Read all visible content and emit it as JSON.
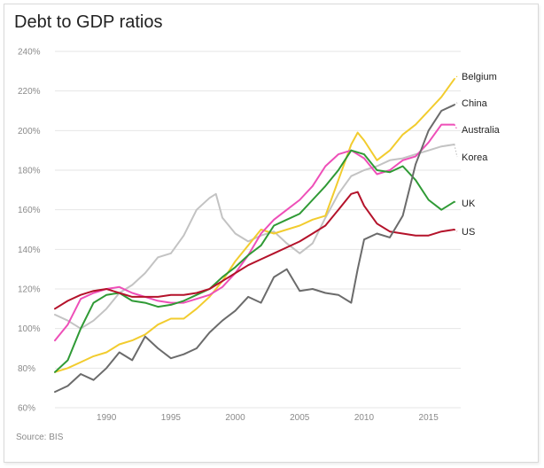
{
  "chart_data": {
    "type": "line",
    "title": "Debt to GDP ratios",
    "source": "Source: BIS",
    "xlim": [
      1986,
      2017.5
    ],
    "ylim": [
      60,
      240
    ],
    "y_ticks": [
      "60%",
      "80%",
      "100%",
      "120%",
      "140%",
      "160%",
      "180%",
      "200%",
      "220%",
      "240%"
    ],
    "y_tick_values": [
      60,
      80,
      100,
      120,
      140,
      160,
      180,
      200,
      220,
      240
    ],
    "x_ticks": [
      "1990",
      "1995",
      "2000",
      "2005",
      "2010",
      "2015"
    ],
    "x_tick_values": [
      1990,
      1995,
      2000,
      2005,
      2010,
      2015
    ],
    "grid": "horizontal",
    "series": [
      {
        "name": "Belgium",
        "color": "#f2cc2e",
        "points": [
          [
            1986,
            78
          ],
          [
            1987,
            80
          ],
          [
            1988,
            83
          ],
          [
            1989,
            86
          ],
          [
            1990,
            88
          ],
          [
            1991,
            92
          ],
          [
            1992,
            94
          ],
          [
            1993,
            97
          ],
          [
            1994,
            102
          ],
          [
            1995,
            105
          ],
          [
            1996,
            105
          ],
          [
            1997,
            110
          ],
          [
            1998,
            116
          ],
          [
            1999,
            124
          ],
          [
            2000,
            134
          ],
          [
            2001,
            142
          ],
          [
            2002,
            150
          ],
          [
            2003,
            148
          ],
          [
            2004,
            150
          ],
          [
            2005,
            152
          ],
          [
            2006,
            155
          ],
          [
            2007,
            157
          ],
          [
            2008,
            175
          ],
          [
            2009,
            193
          ],
          [
            2009.5,
            199
          ],
          [
            2010,
            195
          ],
          [
            2011,
            185
          ],
          [
            2012,
            190
          ],
          [
            2013,
            198
          ],
          [
            2014,
            203
          ],
          [
            2015,
            210
          ],
          [
            2016,
            217
          ],
          [
            2017,
            226
          ]
        ]
      },
      {
        "name": "China",
        "color": "#6b6b6b",
        "points": [
          [
            1986,
            68
          ],
          [
            1987,
            71
          ],
          [
            1988,
            77
          ],
          [
            1989,
            74
          ],
          [
            1990,
            80
          ],
          [
            1991,
            88
          ],
          [
            1992,
            84
          ],
          [
            1993,
            96
          ],
          [
            1994,
            90
          ],
          [
            1995,
            85
          ],
          [
            1996,
            87
          ],
          [
            1997,
            90
          ],
          [
            1998,
            98
          ],
          [
            1999,
            104
          ],
          [
            2000,
            109
          ],
          [
            2001,
            116
          ],
          [
            2002,
            113
          ],
          [
            2003,
            126
          ],
          [
            2004,
            130
          ],
          [
            2005,
            119
          ],
          [
            2006,
            120
          ],
          [
            2007,
            118
          ],
          [
            2008,
            117
          ],
          [
            2009,
            113
          ],
          [
            2009.5,
            130
          ],
          [
            2010,
            145
          ],
          [
            2011,
            148
          ],
          [
            2012,
            146
          ],
          [
            2013,
            157
          ],
          [
            2014,
            183
          ],
          [
            2015,
            200
          ],
          [
            2016,
            210
          ],
          [
            2017,
            213
          ]
        ]
      },
      {
        "name": "Australia",
        "color": "#ee4fb8",
        "points": [
          [
            1986,
            94
          ],
          [
            1987,
            102
          ],
          [
            1988,
            115
          ],
          [
            1989,
            118
          ],
          [
            1990,
            120
          ],
          [
            1991,
            121
          ],
          [
            1992,
            118
          ],
          [
            1993,
            116
          ],
          [
            1994,
            114
          ],
          [
            1995,
            113
          ],
          [
            1996,
            113
          ],
          [
            1997,
            115
          ],
          [
            1998,
            117
          ],
          [
            1999,
            121
          ],
          [
            2000,
            128
          ],
          [
            2001,
            137
          ],
          [
            2002,
            148
          ],
          [
            2003,
            155
          ],
          [
            2004,
            160
          ],
          [
            2005,
            165
          ],
          [
            2006,
            172
          ],
          [
            2007,
            182
          ],
          [
            2008,
            188
          ],
          [
            2009,
            190
          ],
          [
            2010,
            186
          ],
          [
            2011,
            178
          ],
          [
            2012,
            180
          ],
          [
            2013,
            185
          ],
          [
            2014,
            187
          ],
          [
            2015,
            194
          ],
          [
            2016,
            203
          ],
          [
            2017,
            203
          ]
        ]
      },
      {
        "name": "Korea",
        "color": "#c3c3c3",
        "points": [
          [
            1986,
            107
          ],
          [
            1987,
            104
          ],
          [
            1988,
            100
          ],
          [
            1989,
            104
          ],
          [
            1990,
            110
          ],
          [
            1991,
            118
          ],
          [
            1992,
            122
          ],
          [
            1993,
            128
          ],
          [
            1994,
            136
          ],
          [
            1995,
            138
          ],
          [
            1996,
            147
          ],
          [
            1997,
            160
          ],
          [
            1998,
            166
          ],
          [
            1998.5,
            168
          ],
          [
            1999,
            156
          ],
          [
            2000,
            148
          ],
          [
            2001,
            144
          ],
          [
            2002,
            147
          ],
          [
            2003,
            149
          ],
          [
            2004,
            143
          ],
          [
            2005,
            138
          ],
          [
            2006,
            143
          ],
          [
            2007,
            156
          ],
          [
            2008,
            168
          ],
          [
            2009,
            177
          ],
          [
            2010,
            180
          ],
          [
            2011,
            182
          ],
          [
            2012,
            185
          ],
          [
            2013,
            186
          ],
          [
            2014,
            188
          ],
          [
            2015,
            190
          ],
          [
            2016,
            192
          ],
          [
            2017,
            193
          ]
        ]
      },
      {
        "name": "UK",
        "color": "#2f9a35",
        "points": [
          [
            1986,
            78
          ],
          [
            1987,
            84
          ],
          [
            1988,
            100
          ],
          [
            1989,
            113
          ],
          [
            1990,
            117
          ],
          [
            1991,
            118
          ],
          [
            1992,
            114
          ],
          [
            1993,
            113
          ],
          [
            1994,
            111
          ],
          [
            1995,
            112
          ],
          [
            1996,
            114
          ],
          [
            1997,
            117
          ],
          [
            1998,
            120
          ],
          [
            1999,
            126
          ],
          [
            2000,
            131
          ],
          [
            2001,
            137
          ],
          [
            2002,
            142
          ],
          [
            2003,
            152
          ],
          [
            2004,
            155
          ],
          [
            2005,
            158
          ],
          [
            2006,
            165
          ],
          [
            2007,
            172
          ],
          [
            2008,
            180
          ],
          [
            2009,
            190
          ],
          [
            2010,
            188
          ],
          [
            2011,
            180
          ],
          [
            2012,
            179
          ],
          [
            2013,
            182
          ],
          [
            2014,
            175
          ],
          [
            2015,
            165
          ],
          [
            2016,
            160
          ],
          [
            2017,
            164
          ]
        ]
      },
      {
        "name": "US",
        "color": "#b4122a",
        "points": [
          [
            1986,
            110
          ],
          [
            1987,
            114
          ],
          [
            1988,
            117
          ],
          [
            1989,
            119
          ],
          [
            1990,
            120
          ],
          [
            1991,
            118
          ],
          [
            1992,
            116
          ],
          [
            1993,
            116
          ],
          [
            1994,
            116
          ],
          [
            1995,
            117
          ],
          [
            1996,
            117
          ],
          [
            1997,
            118
          ],
          [
            1998,
            120
          ],
          [
            1999,
            124
          ],
          [
            2000,
            128
          ],
          [
            2001,
            132
          ],
          [
            2002,
            135
          ],
          [
            2003,
            138
          ],
          [
            2004,
            141
          ],
          [
            2005,
            144
          ],
          [
            2006,
            148
          ],
          [
            2007,
            152
          ],
          [
            2008,
            160
          ],
          [
            2009,
            168
          ],
          [
            2009.5,
            169
          ],
          [
            2010,
            162
          ],
          [
            2011,
            153
          ],
          [
            2012,
            149
          ],
          [
            2013,
            148
          ],
          [
            2014,
            147
          ],
          [
            2015,
            147
          ],
          [
            2016,
            149
          ],
          [
            2017,
            150
          ]
        ]
      }
    ]
  }
}
